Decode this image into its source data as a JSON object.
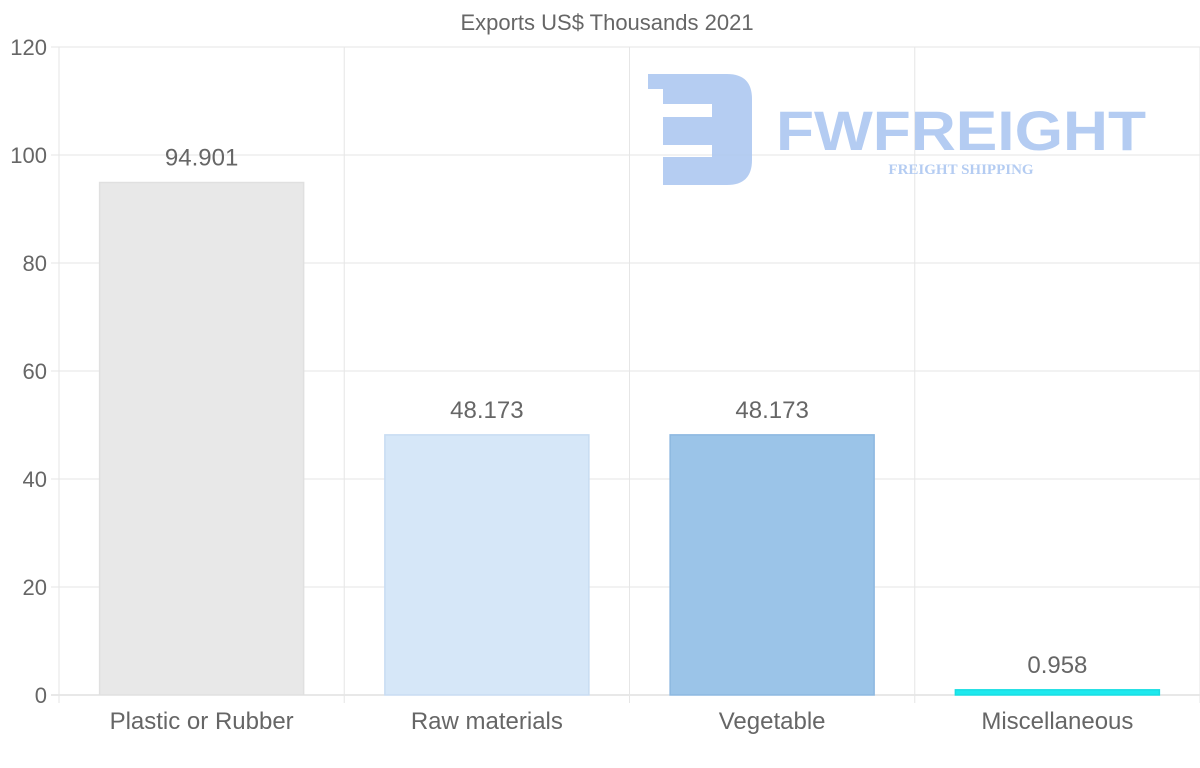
{
  "chart_data": {
    "type": "bar",
    "title": "Exports US$ Thousands 2021",
    "categories": [
      "Plastic or Rubber",
      "Raw materials",
      "Vegetable",
      "Miscellaneous"
    ],
    "values": [
      94.901,
      48.173,
      48.173,
      0.958
    ],
    "value_labels": [
      "94.901",
      "48.173",
      "48.173",
      "0.958"
    ],
    "colors": [
      "#e8e8e8",
      "#d6e7f8",
      "#9bc4e8",
      "#1de9ee"
    ],
    "border_colors": [
      "#e0e0e0",
      "#c8dcf2",
      "#8db8e0",
      "#18dde2"
    ],
    "ylim": [
      0,
      120
    ],
    "yticks": [
      0,
      20,
      40,
      60,
      80,
      100,
      120
    ],
    "xlabel": "",
    "ylabel": "",
    "grid": true,
    "legend": "none"
  },
  "watermark": {
    "brand": "FWFREIGHT",
    "tagline": "FREIGHT SHIPPING",
    "color": "#a8c4f0"
  }
}
